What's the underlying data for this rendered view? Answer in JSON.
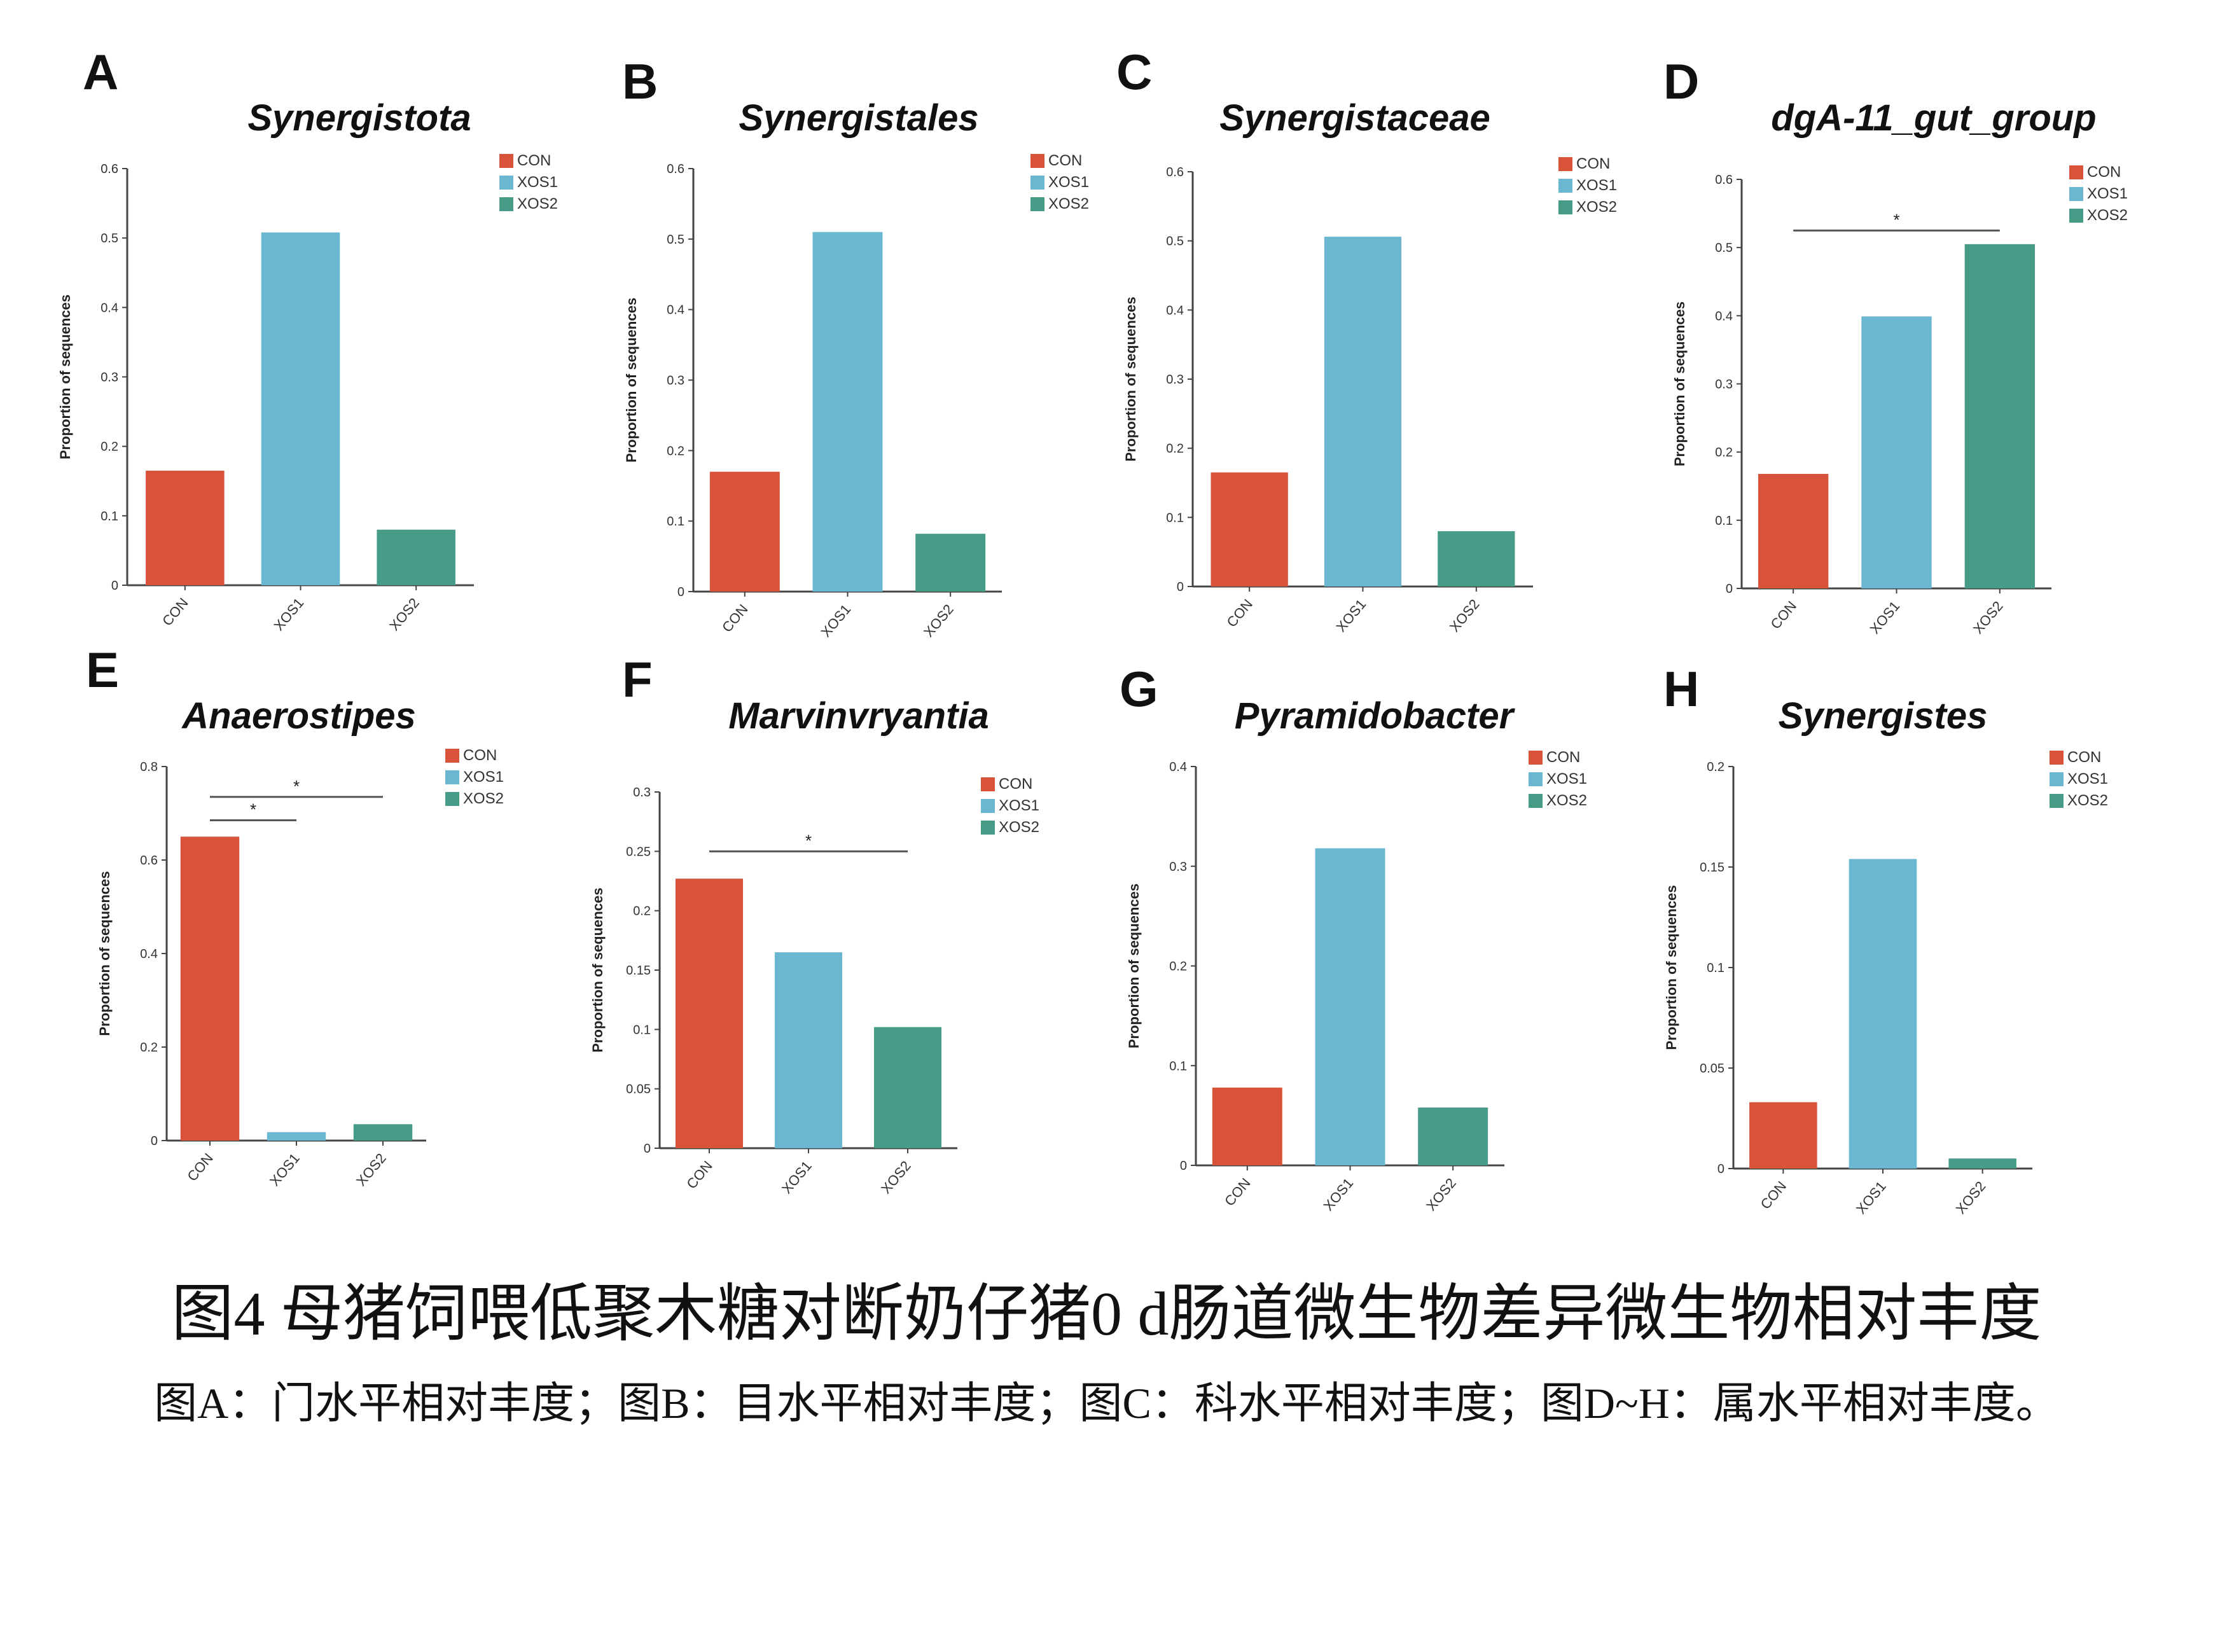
{
  "colors": {
    "CON": "#d9533b",
    "XOS1": "#6bb7d1",
    "XOS2": "#469c86",
    "axis": "#444444",
    "sig_line": "#555555"
  },
  "legend": [
    "CON",
    "XOS1",
    "XOS2"
  ],
  "chart_data": [
    {
      "panel": "A",
      "type": "bar",
      "title": "Synergistota",
      "ylabel": "Proportion of sequences",
      "categories": [
        "CON",
        "XOS1",
        "XOS2"
      ],
      "values": [
        0.165,
        0.508,
        0.08
      ],
      "ylim": [
        0,
        0.6
      ],
      "yticks": [
        "0",
        "0.1",
        "0.2",
        "0.3",
        "0.4",
        "0.5",
        "0.6"
      ],
      "significance": []
    },
    {
      "panel": "B",
      "type": "bar",
      "title": "Synergistales",
      "ylabel": "Proportion of sequences",
      "categories": [
        "CON",
        "XOS1",
        "XOS2"
      ],
      "values": [
        0.17,
        0.51,
        0.082
      ],
      "ylim": [
        0,
        0.6
      ],
      "yticks": [
        "0",
        "0.1",
        "0.2",
        "0.3",
        "0.4",
        "0.5",
        "0.6"
      ],
      "significance": []
    },
    {
      "panel": "C",
      "type": "bar",
      "title": "Synergistaceae",
      "ylabel": "Proportion of sequences",
      "categories": [
        "CON",
        "XOS1",
        "XOS2"
      ],
      "values": [
        0.165,
        0.506,
        0.08
      ],
      "ylim": [
        0,
        0.6
      ],
      "yticks": [
        "0",
        "0.1",
        "0.2",
        "0.3",
        "0.4",
        "0.5",
        "0.6"
      ],
      "significance": []
    },
    {
      "panel": "D",
      "type": "bar",
      "title": "dgA-11_gut_group",
      "ylabel": "Proportion of sequences",
      "categories": [
        "CON",
        "XOS1",
        "XOS2"
      ],
      "values": [
        0.168,
        0.399,
        0.505
      ],
      "ylim": [
        0,
        0.6
      ],
      "yticks": [
        "0",
        "0.1",
        "0.2",
        "0.3",
        "0.4",
        "0.5",
        "0.6"
      ],
      "significance": [
        {
          "from": 0,
          "to": 2,
          "level": 0.525,
          "label": "*"
        }
      ]
    },
    {
      "panel": "E",
      "type": "bar",
      "title": "Anaerostipes",
      "ylabel": "Proportion of sequences",
      "categories": [
        "CON",
        "XOS1",
        "XOS2"
      ],
      "values": [
        0.65,
        0.018,
        0.035
      ],
      "ylim": [
        0,
        0.8
      ],
      "yticks": [
        "0",
        "0.2",
        "0.4",
        "0.6",
        "0.8"
      ],
      "significance": [
        {
          "from": 0,
          "to": 1,
          "level": 0.685,
          "label": "*"
        },
        {
          "from": 0,
          "to": 2,
          "level": 0.735,
          "label": "*"
        }
      ]
    },
    {
      "panel": "F",
      "type": "bar",
      "title": "Marvinvryantia",
      "ylabel": "Proportion of sequences",
      "categories": [
        "CON",
        "XOS1",
        "XOS2"
      ],
      "values": [
        0.227,
        0.165,
        0.102
      ],
      "ylim": [
        0,
        0.3
      ],
      "yticks": [
        "0",
        "0.05",
        "0.1",
        "0.15",
        "0.2",
        "0.25",
        "0.3"
      ],
      "significance": [
        {
          "from": 0,
          "to": 2,
          "level": 0.25,
          "label": "*"
        }
      ]
    },
    {
      "panel": "G",
      "type": "bar",
      "title": "Pyramidobacter",
      "ylabel": "Proportion of sequences",
      "categories": [
        "CON",
        "XOS1",
        "XOS2"
      ],
      "values": [
        0.078,
        0.318,
        0.058
      ],
      "ylim": [
        0,
        0.4
      ],
      "yticks": [
        "0",
        "0.1",
        "0.2",
        "0.3",
        "0.4"
      ],
      "significance": []
    },
    {
      "panel": "H",
      "type": "bar",
      "title": "Synergistes",
      "ylabel": "Proportion of sequences",
      "categories": [
        "CON",
        "XOS1",
        "XOS2"
      ],
      "values": [
        0.033,
        0.154,
        0.005
      ],
      "ylim": [
        0,
        0.2
      ],
      "yticks": [
        "0",
        "0.05",
        "0.1",
        "0.15",
        "0.2"
      ],
      "significance": []
    }
  ],
  "caption": {
    "main": "图4 母猪饲喂低聚木糖对断奶仔猪0 d肠道微生物差异微生物相对丰度",
    "sub": "图A：门水平相对丰度；图B：目水平相对丰度；图C：科水平相对丰度；图D~H：属水平相对丰度。"
  }
}
